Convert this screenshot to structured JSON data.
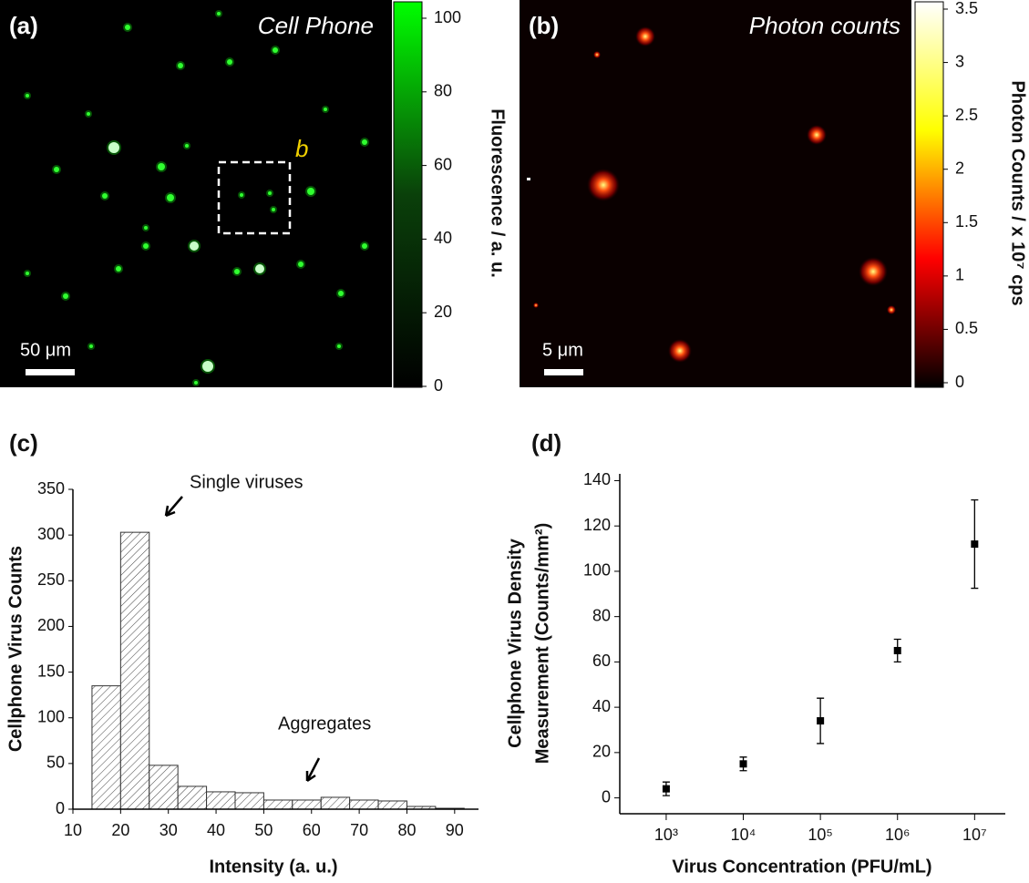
{
  "chart_data": [
    {
      "type": "image",
      "panel_label": "(a)",
      "title": "Cell Phone",
      "scale_bar": "50 μm",
      "box_label": "b",
      "ylabel": "Fluorescence / a. u.",
      "ylim": [
        0,
        100
      ],
      "yticks": [
        0,
        20,
        40,
        60,
        80,
        100
      ],
      "colormap": [
        "#000000",
        "#0a400a",
        "#00ff00"
      ]
    },
    {
      "type": "image",
      "panel_label": "(b)",
      "title": "Photon counts",
      "scale_bar": "5 μm",
      "ylabel": "Photon Counts / x 10⁷ cps",
      "ylim": [
        0,
        3.5
      ],
      "yticks": [
        0,
        0.5,
        1,
        1.5,
        2,
        2.5,
        3,
        3.5
      ],
      "colormap": [
        "#000000",
        "#ff0000",
        "#ffff00",
        "#ffffff"
      ]
    },
    {
      "type": "histogram",
      "panel_label": "(c)",
      "xlabel": "Intensity (a. u.)",
      "ylabel": "Cellphone Virus Counts",
      "bins": [
        14,
        20,
        26,
        32,
        38,
        44,
        50,
        56,
        62,
        68,
        74,
        80,
        86,
        92
      ],
      "values": [
        135,
        303,
        48,
        25,
        19,
        18,
        10,
        10,
        13,
        10,
        9,
        3,
        1
      ],
      "xlim": [
        10,
        95
      ],
      "xticks": [
        10,
        20,
        30,
        40,
        50,
        60,
        70,
        80,
        90
      ],
      "ylim": [
        0,
        350
      ],
      "yticks": [
        0,
        50,
        100,
        150,
        200,
        250,
        300,
        350
      ],
      "annotations": [
        "Single viruses",
        "Aggregates"
      ]
    },
    {
      "type": "scatter",
      "panel_label": "(d)",
      "xlabel": "Virus Concentration (PFU/mL)",
      "ylabel": [
        "Cellphone Virus Density",
        "Measurement (Counts/mm²)"
      ],
      "xscale": "log",
      "x": [
        1000,
        10000,
        100000,
        1000000,
        10000000
      ],
      "values": [
        4,
        15,
        34,
        65,
        112
      ],
      "errors": [
        3,
        3,
        10,
        5,
        19.5
      ],
      "xlim": [
        250,
        25000000
      ],
      "xticks": [
        {
          "value": 1000,
          "label": "10³"
        },
        {
          "value": 10000,
          "label": "10⁴"
        },
        {
          "value": 100000,
          "label": "10⁵"
        },
        {
          "value": 1000000,
          "label": "10⁶"
        },
        {
          "value": 10000000,
          "label": "10⁷"
        }
      ],
      "ylim": [
        -7,
        143
      ],
      "yticks": [
        0,
        20,
        40,
        60,
        80,
        100,
        120,
        140
      ],
      "color": "#000000"
    }
  ]
}
